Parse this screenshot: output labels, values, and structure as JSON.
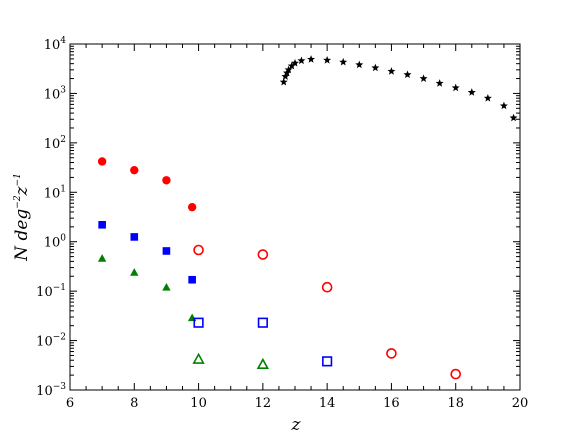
{
  "chart_data": {
    "type": "scatter",
    "title": "",
    "xlabel": "z",
    "ylabel_parts": {
      "prefix": "N deg",
      "exp1": "−2",
      "mid": "z",
      "exp2": "−1"
    },
    "xlim": [
      6,
      20
    ],
    "ylim": [
      0.001,
      10000
    ],
    "y_scale": "log",
    "grid": false,
    "legend": "none",
    "x_ticks": [
      "6",
      "8",
      "10",
      "12",
      "14",
      "16",
      "18",
      "20"
    ],
    "y_ticks": [
      {
        "base": "10",
        "exp": "−3"
      },
      {
        "base": "10",
        "exp": "−2"
      },
      {
        "base": "10",
        "exp": "−1"
      },
      {
        "base": "10",
        "exp": "0"
      },
      {
        "base": "10",
        "exp": "1"
      },
      {
        "base": "10",
        "exp": "2"
      },
      {
        "base": "10",
        "exp": "3"
      },
      {
        "base": "10",
        "exp": "4"
      }
    ],
    "series": [
      {
        "marker": "circle",
        "filled": true,
        "color": "#ff0000",
        "points": [
          [
            7,
            42
          ],
          [
            8,
            28
          ],
          [
            9,
            17.5
          ],
          [
            9.8,
            5.0
          ]
        ]
      },
      {
        "marker": "square",
        "filled": true,
        "color": "#0000ff",
        "points": [
          [
            7,
            2.2
          ],
          [
            8,
            1.25
          ],
          [
            9,
            0.65
          ],
          [
            9.8,
            0.17
          ]
        ]
      },
      {
        "marker": "triangle",
        "filled": true,
        "color": "#008000",
        "points": [
          [
            7,
            0.46
          ],
          [
            8,
            0.24
          ],
          [
            9,
            0.12
          ],
          [
            9.8,
            0.029
          ]
        ]
      },
      {
        "marker": "circle",
        "filled": false,
        "color": "#ff0000",
        "points": [
          [
            10,
            0.68
          ],
          [
            12,
            0.55
          ],
          [
            14,
            0.12
          ],
          [
            16,
            0.0055
          ],
          [
            18,
            0.0021
          ]
        ]
      },
      {
        "marker": "square",
        "filled": false,
        "color": "#0000ff",
        "points": [
          [
            10,
            0.023
          ],
          [
            12,
            0.023
          ],
          [
            14,
            0.0038
          ]
        ]
      },
      {
        "marker": "triangle",
        "filled": false,
        "color": "#008000",
        "points": [
          [
            10,
            0.0042
          ],
          [
            12,
            0.0033
          ]
        ]
      },
      {
        "marker": "star",
        "filled": true,
        "color": "#000000",
        "points": [
          [
            12.65,
            1700
          ],
          [
            12.7,
            2200
          ],
          [
            12.75,
            2600
          ],
          [
            12.8,
            3000
          ],
          [
            12.9,
            3600
          ],
          [
            13.0,
            4100
          ],
          [
            13.2,
            4600
          ],
          [
            13.5,
            4900
          ],
          [
            14.0,
            4700
          ],
          [
            14.5,
            4300
          ],
          [
            15.0,
            3800
          ],
          [
            15.5,
            3300
          ],
          [
            16.0,
            2800
          ],
          [
            16.5,
            2400
          ],
          [
            17.0,
            2000
          ],
          [
            17.5,
            1600
          ],
          [
            18.0,
            1300
          ],
          [
            18.5,
            1050
          ],
          [
            19.0,
            800
          ],
          [
            19.5,
            560
          ],
          [
            19.8,
            320
          ]
        ]
      }
    ]
  }
}
